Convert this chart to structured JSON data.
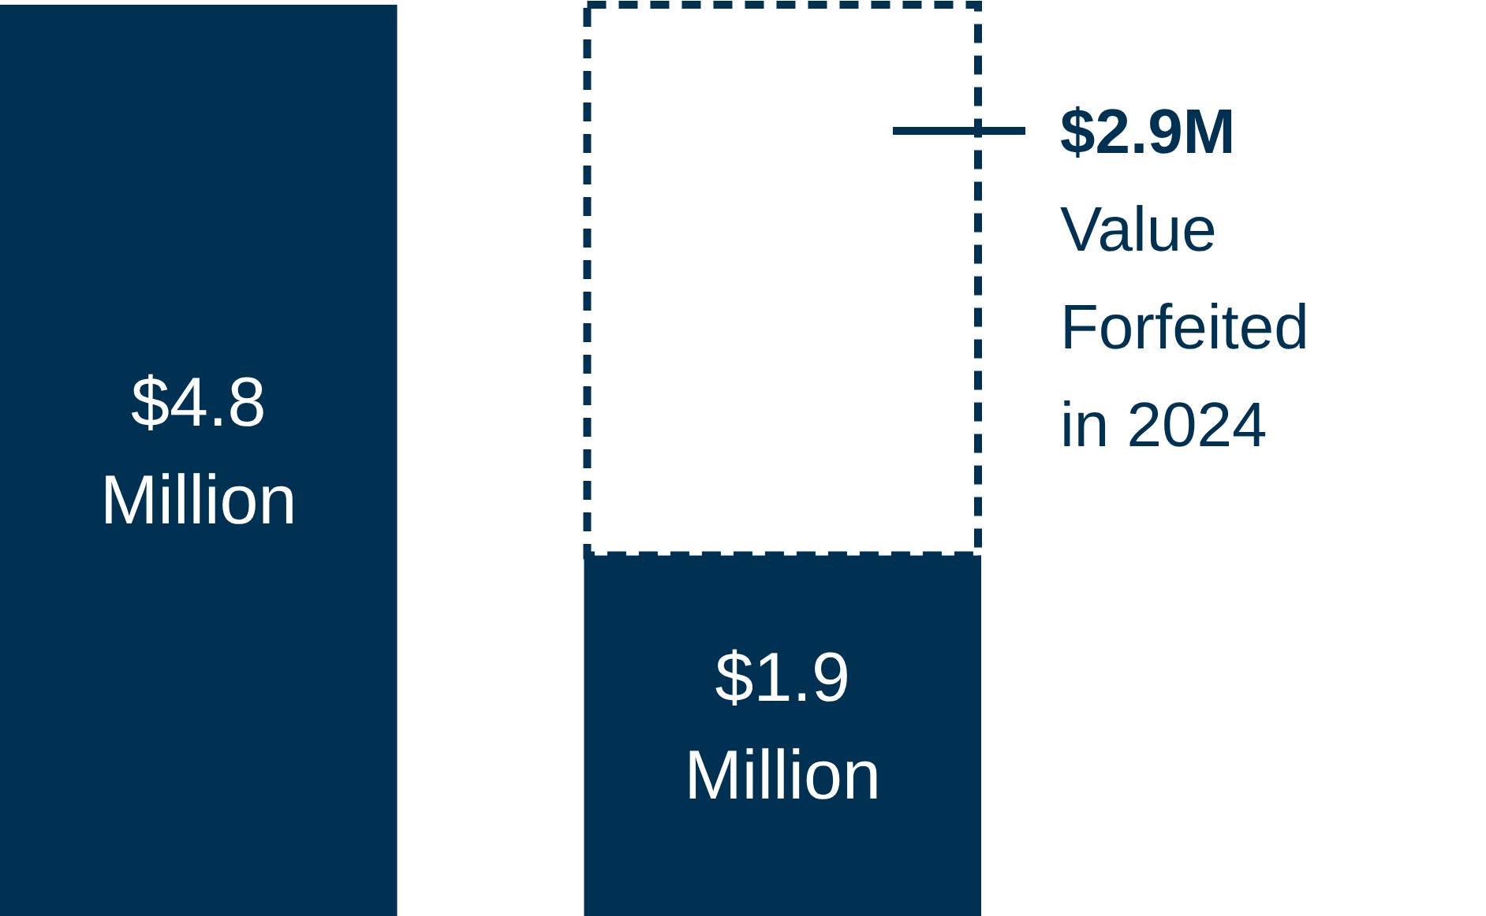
{
  "chart_data": {
    "type": "bar",
    "stacked": true,
    "categories": [
      null,
      null
    ],
    "series": [
      {
        "color": "#003152",
        "values": [
          4.8,
          1.9
        ],
        "value_labels": [
          "$4.8 Million",
          "$1.9 Million"
        ]
      },
      {
        "name": "Value Forfeited in 2024",
        "color": "#003152",
        "line_style": "dashed",
        "values": [
          null,
          2.9
        ],
        "value_labels": [
          null,
          "$2.9M"
        ]
      }
    ],
    "grid": false
  }
}
